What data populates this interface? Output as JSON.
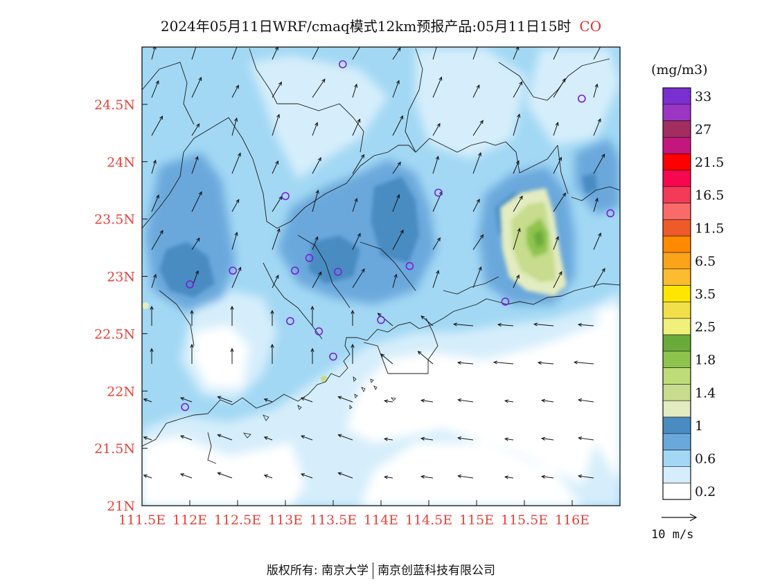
{
  "title": {
    "text": "2024年05月11日WRF/cmaq模式12km预报产品:05月11日15时",
    "species": "CO"
  },
  "axes": {
    "lat_labels": [
      "24.5N",
      "24N",
      "23.5N",
      "23N",
      "22.5N",
      "22N",
      "21.5N",
      "21N"
    ],
    "lat_values": [
      24.5,
      24.0,
      23.5,
      23.0,
      22.5,
      22.0,
      21.5,
      21.0
    ],
    "lon_labels": [
      "111.5E",
      "112E",
      "112.5E",
      "113E",
      "113.5E",
      "114E",
      "114.5E",
      "115E",
      "115.5E",
      "116E"
    ],
    "lon_values": [
      111.5,
      112.0,
      112.5,
      113.0,
      113.5,
      114.0,
      114.5,
      115.0,
      115.5,
      116.0
    ],
    "lat_range": [
      21.0,
      25.0
    ],
    "lon_range": [
      111.5,
      116.5
    ],
    "label_color": "#e8423a"
  },
  "legend": {
    "unit": "(mg/m3)",
    "levels": [
      {
        "label": "33",
        "color": "#7a2fd0"
      },
      {
        "label": "",
        "color": "#9b35c4"
      },
      {
        "label": "27",
        "color": "#a12e5e"
      },
      {
        "label": "",
        "color": "#c4177e"
      },
      {
        "label": "21.5",
        "color": "#ff0000"
      },
      {
        "label": "",
        "color": "#f5084f"
      },
      {
        "label": "16.5",
        "color": "#f33a57"
      },
      {
        "label": "",
        "color": "#fb6a6a"
      },
      {
        "label": "11.5",
        "color": "#ee5a2a"
      },
      {
        "label": "",
        "color": "#ff8a00"
      },
      {
        "label": "6.5",
        "color": "#faa41a"
      },
      {
        "label": "",
        "color": "#fcbc30"
      },
      {
        "label": "3.5",
        "color": "#ffe600"
      },
      {
        "label": "",
        "color": "#f2e04a"
      },
      {
        "label": "2.5",
        "color": "#f0f07a"
      },
      {
        "label": "",
        "color": "#6aaa3a"
      },
      {
        "label": "1.8",
        "color": "#8ec44e"
      },
      {
        "label": "",
        "color": "#bedd79"
      },
      {
        "label": "1.4",
        "color": "#c7dc8c"
      },
      {
        "label": "",
        "color": "#e2ecc0"
      },
      {
        "label": "1",
        "color": "#4a8cc2"
      },
      {
        "label": "",
        "color": "#6aa8dc"
      },
      {
        "label": "0.6",
        "color": "#a2d8f4"
      },
      {
        "label": "",
        "color": "#d6eefb"
      },
      {
        "label": "0.2",
        "color": "#ffffff"
      }
    ]
  },
  "wind_reference": {
    "label": "10 m/s"
  },
  "stations": [
    {
      "lon": 113.6,
      "lat": 24.85
    },
    {
      "lon": 116.1,
      "lat": 24.55
    },
    {
      "lon": 113.0,
      "lat": 23.7
    },
    {
      "lon": 114.6,
      "lat": 23.73
    },
    {
      "lon": 116.4,
      "lat": 23.55
    },
    {
      "lon": 112.45,
      "lat": 23.05
    },
    {
      "lon": 113.1,
      "lat": 23.05
    },
    {
      "lon": 113.25,
      "lat": 23.16
    },
    {
      "lon": 113.55,
      "lat": 23.04
    },
    {
      "lon": 114.3,
      "lat": 23.09
    },
    {
      "lon": 112.0,
      "lat": 22.93
    },
    {
      "lon": 115.3,
      "lat": 22.78
    },
    {
      "lon": 113.05,
      "lat": 22.61
    },
    {
      "lon": 113.35,
      "lat": 22.52
    },
    {
      "lon": 114.0,
      "lat": 22.62
    },
    {
      "lon": 113.5,
      "lat": 22.3
    },
    {
      "lon": 111.95,
      "lat": 21.86
    }
  ],
  "footer": {
    "left": "版权所有: 南京大学",
    "right": "南京创蓝科技有限公司"
  }
}
